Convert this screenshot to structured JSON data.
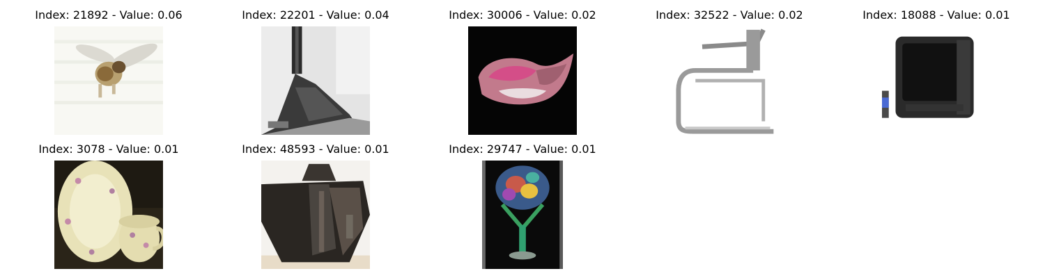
{
  "grid": {
    "items": [
      {
        "title": "Index: 21892 - Value: 0.06",
        "icon": "bee-image"
      },
      {
        "title": "Index: 22201 - Value: 0.04",
        "icon": "train-image"
      },
      {
        "title": "Index: 30006 - Value: 0.02",
        "icon": "flower-image"
      },
      {
        "title": "Index: 32522 - Value: 0.02",
        "icon": "chair-image"
      },
      {
        "title": "Index: 18088 - Value: 0.01",
        "icon": "television-image"
      },
      {
        "title": "Index: 3078 - Value: 0.01",
        "icon": "plate-and-cup-image"
      },
      {
        "title": "Index: 48593 - Value: 0.01",
        "icon": "bag-image"
      },
      {
        "title": "Index: 29747 - Value: 0.01",
        "icon": "glass-image"
      }
    ]
  }
}
